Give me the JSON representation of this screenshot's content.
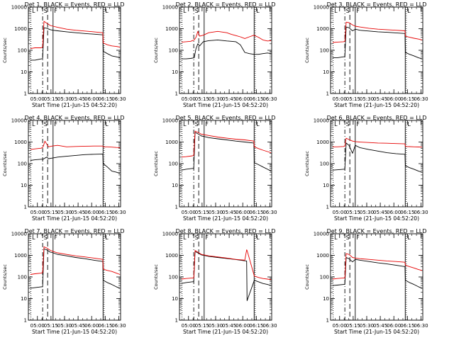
{
  "colors": {
    "events": "#000000",
    "lld": "#e60000",
    "axis": "#000000"
  },
  "chart_data": {
    "type": "line",
    "grid": false,
    "xlabel": "Start Time (21-Jun-15 04:52:20)",
    "ylabel": "Counts/sec",
    "yscale": "log",
    "ylim": [
      1,
      10000
    ],
    "xlim_min": [
      -2.3,
      99.7
    ],
    "x_ticks_min": [
      7.7,
      22.7,
      37.7,
      52.7,
      67.7,
      82.7,
      97.7
    ],
    "x_tick_labels": [
      "05:00",
      "05:15",
      "05:30",
      "05:45",
      "06:00",
      "06:15",
      "06:30"
    ],
    "y_ticks": [
      1,
      10,
      100,
      1000,
      10000
    ],
    "y_tick_labels": [
      "1",
      "10",
      "100",
      "1000",
      "10000"
    ],
    "markers": [
      {
        "label": "L",
        "x_min": 0.5,
        "style": "dotted"
      },
      {
        "label": "S",
        "x_min": 13.5,
        "style": "dashdot"
      },
      {
        "label": "",
        "x_min": 19.0,
        "style": "dashed"
      },
      {
        "label": "F",
        "x_min": 25.0,
        "style": "solid"
      },
      {
        "label": "",
        "x_min": 80.3,
        "style": "solid"
      },
      {
        "label": "L",
        "x_min": 81.5,
        "style": "dotted"
      }
    ],
    "panels": [
      {
        "title": "Det 1, BLACK = Events, RED = LLD",
        "series": [
          {
            "name": "Events",
            "x": [
              0,
              5,
              12,
              13.5,
              15,
              18,
              22,
              25,
              30,
              40,
              50,
              60,
              70,
              80,
              80.5,
              85,
              90,
              95,
              99
            ],
            "y": [
              35,
              35,
              40,
              40,
              1100,
              1050,
              900,
              850,
              800,
              720,
              650,
              600,
              560,
              520,
              90,
              70,
              55,
              50,
              45
            ]
          },
          {
            "name": "LLD",
            "x": [
              0,
              5,
              12,
              13.5,
              15,
              18,
              22,
              25,
              30,
              40,
              50,
              60,
              70,
              80,
              80.5,
              85,
              90,
              95,
              99
            ],
            "y": [
              120,
              130,
              130,
              140,
              2200,
              1800,
              1400,
              1300,
              1150,
              950,
              850,
              780,
              720,
              650,
              220,
              180,
              160,
              150,
              140
            ]
          }
        ]
      },
      {
        "title": "Det 2, BLACK = Events, RED = LLD",
        "series": [
          {
            "name": "Events",
            "x": [
              0,
              5,
              10,
              14,
              16,
              18,
              20,
              24,
              30,
              40,
              50,
              55,
              60,
              65,
              70,
              75,
              80,
              85,
              90,
              95,
              99
            ],
            "y": [
              40,
              40,
              42,
              45,
              120,
              200,
              160,
              250,
              280,
              300,
              270,
              260,
              250,
              180,
              80,
              70,
              65,
              65,
              70,
              75,
              70
            ]
          },
          {
            "name": "LLD",
            "x": [
              0,
              5,
              10,
              14,
              16,
              18,
              20,
              24,
              30,
              40,
              50,
              55,
              60,
              65,
              70,
              75,
              80,
              85,
              90,
              95,
              99
            ],
            "y": [
              240,
              250,
              260,
              300,
              400,
              750,
              450,
              500,
              650,
              750,
              650,
              550,
              480,
              420,
              350,
              420,
              500,
              400,
              300,
              270,
              280
            ]
          }
        ]
      },
      {
        "title": "Det 3, BLACK = Events, RED = LLD",
        "series": [
          {
            "name": "Events",
            "x": [
              0,
              5,
              12,
              13.5,
              15,
              18,
              22,
              25,
              30,
              40,
              50,
              60,
              70,
              80,
              80.5,
              85,
              90,
              95,
              99
            ],
            "y": [
              45,
              45,
              50,
              50,
              1200,
              1100,
              800,
              950,
              850,
              780,
              720,
              680,
              640,
              600,
              80,
              65,
              55,
              45,
              40
            ]
          },
          {
            "name": "LLD",
            "x": [
              0,
              5,
              12,
              13.5,
              15,
              18,
              22,
              25,
              30,
              40,
              50,
              60,
              70,
              80,
              80.5,
              85,
              90,
              95,
              99
            ],
            "y": [
              230,
              240,
              250,
              260,
              2000,
              1900,
              1500,
              1300,
              1200,
              1050,
              950,
              900,
              850,
              800,
              450,
              400,
              360,
              330,
              300
            ]
          }
        ]
      },
      {
        "title": "Det 4, BLACK = Events, RED = LLD",
        "series": [
          {
            "name": "Events",
            "x": [
              0,
              5,
              12,
              14,
              16,
              18,
              20,
              24,
              30,
              40,
              50,
              60,
              70,
              80,
              80.5,
              85,
              90,
              95,
              99
            ],
            "y": [
              140,
              150,
              160,
              160,
              180,
              200,
              170,
              180,
              200,
              220,
              240,
              260,
              270,
              280,
              100,
              70,
              45,
              40,
              35
            ]
          },
          {
            "name": "LLD",
            "x": [
              0,
              5,
              12,
              14,
              16,
              18,
              20,
              24,
              30,
              40,
              50,
              60,
              70,
              80,
              80.5,
              85,
              90,
              95,
              99
            ],
            "y": [
              450,
              480,
              520,
              600,
              1100,
              800,
              600,
              650,
              700,
              600,
              620,
              640,
              650,
              650,
              600,
              600,
              580,
              560,
              550
            ]
          }
        ]
      },
      {
        "title": "Det 5, BLACK = Events, RED = LLD",
        "series": [
          {
            "name": "Events",
            "x": [
              0,
              5,
              12,
              13.5,
              15,
              18,
              22,
              25,
              30,
              40,
              50,
              60,
              70,
              80,
              80.5,
              85,
              90,
              95,
              99
            ],
            "y": [
              50,
              55,
              60,
              60,
              2800,
              2400,
              1900,
              1800,
              1600,
              1400,
              1250,
              1100,
              1000,
              900,
              110,
              90,
              70,
              55,
              45
            ]
          },
          {
            "name": "LLD",
            "x": [
              0,
              5,
              12,
              13.5,
              15,
              18,
              22,
              25,
              30,
              40,
              50,
              60,
              70,
              80,
              80.5,
              85,
              90,
              95,
              99
            ],
            "y": [
              200,
              210,
              230,
              240,
              3200,
              2800,
              2300,
              2200,
              2000,
              1700,
              1500,
              1350,
              1250,
              1100,
              600,
              500,
              420,
              360,
              320
            ]
          }
        ]
      },
      {
        "title": "Det 6, BLACK = Events, RED = LLD",
        "series": [
          {
            "name": "Events",
            "x": [
              0,
              5,
              12,
              13.5,
              15,
              18,
              22,
              25,
              30,
              40,
              50,
              60,
              70,
              80,
              80.5,
              85,
              90,
              95,
              99
            ],
            "y": [
              50,
              52,
              55,
              55,
              900,
              700,
              300,
              700,
              550,
              450,
              380,
              320,
              290,
              270,
              80,
              65,
              55,
              45,
              40
            ]
          },
          {
            "name": "LLD",
            "x": [
              0,
              5,
              12,
              13.5,
              15,
              18,
              22,
              25,
              30,
              40,
              50,
              60,
              70,
              80,
              80.5,
              85,
              90,
              95,
              99
            ],
            "y": [
              600,
              600,
              620,
              650,
              1500,
              1300,
              1100,
              1050,
              1000,
              950,
              900,
              880,
              850,
              820,
              620,
              610,
              600,
              590,
              580
            ]
          }
        ]
      },
      {
        "title": "Det 7, BLACK = Events, RED = LLD",
        "series": [
          {
            "name": "Events",
            "x": [
              0,
              5,
              12,
              13.5,
              15,
              18,
              22,
              25,
              30,
              40,
              50,
              60,
              70,
              80,
              80.5,
              85,
              90,
              95,
              99
            ],
            "y": [
              30,
              32,
              35,
              35,
              2000,
              1800,
              1400,
              1300,
              1100,
              950,
              800,
              700,
              600,
              520,
              70,
              55,
              45,
              35,
              30
            ]
          },
          {
            "name": "LLD",
            "x": [
              0,
              5,
              12,
              13.5,
              15,
              18,
              22,
              25,
              30,
              40,
              50,
              60,
              70,
              80,
              80.5,
              85,
              90,
              95,
              99
            ],
            "y": [
              130,
              140,
              150,
              160,
              2500,
              2200,
              1700,
              1500,
              1300,
              1100,
              950,
              850,
              750,
              650,
              230,
              200,
              180,
              150,
              130
            ]
          }
        ]
      },
      {
        "title": "Det 8, BLACK = Events, RED = LLD",
        "series": [
          {
            "name": "Events",
            "x": [
              0,
              5,
              12,
              13.5,
              15,
              18,
              22,
              25,
              30,
              40,
              50,
              60,
              70,
              72,
              72.5,
              80.5,
              85,
              90,
              95,
              99
            ],
            "y": [
              50,
              55,
              60,
              60,
              1500,
              1300,
              1050,
              1000,
              900,
              800,
              720,
              640,
              560,
              550,
              8,
              70,
              60,
              50,
              45,
              40
            ]
          },
          {
            "name": "LLD",
            "x": [
              0,
              5,
              12,
              13.5,
              15,
              18,
              22,
              25,
              30,
              40,
              50,
              60,
              70,
              72,
              72.5,
              80.5,
              85,
              90,
              95,
              99
            ],
            "y": [
              80,
              85,
              90,
              90,
              1700,
              1400,
              1100,
              1050,
              950,
              850,
              750,
              650,
              600,
              1800,
              1700,
              110,
              95,
              85,
              80,
              75
            ]
          }
        ]
      },
      {
        "title": "Det 9, BLACK = Events, RED = LLD",
        "series": [
          {
            "name": "Events",
            "x": [
              0,
              5,
              12,
              13.5,
              15,
              18,
              22,
              25,
              30,
              40,
              50,
              60,
              70,
              80,
              80.5,
              85,
              90,
              95,
              99
            ],
            "y": [
              40,
              42,
              45,
              45,
              800,
              700,
              500,
              650,
              600,
              520,
              450,
              400,
              350,
              300,
              70,
              55,
              45,
              35,
              30
            ]
          },
          {
            "name": "LLD",
            "x": [
              0,
              5,
              12,
              13.5,
              15,
              18,
              22,
              25,
              30,
              40,
              50,
              60,
              70,
              80,
              80.5,
              85,
              90,
              95,
              99
            ],
            "y": [
              80,
              85,
              90,
              90,
              1200,
              1100,
              800,
              750,
              700,
              650,
              600,
              550,
              520,
              480,
              350,
              300,
              260,
              220,
              200
            ]
          }
        ]
      }
    ]
  }
}
